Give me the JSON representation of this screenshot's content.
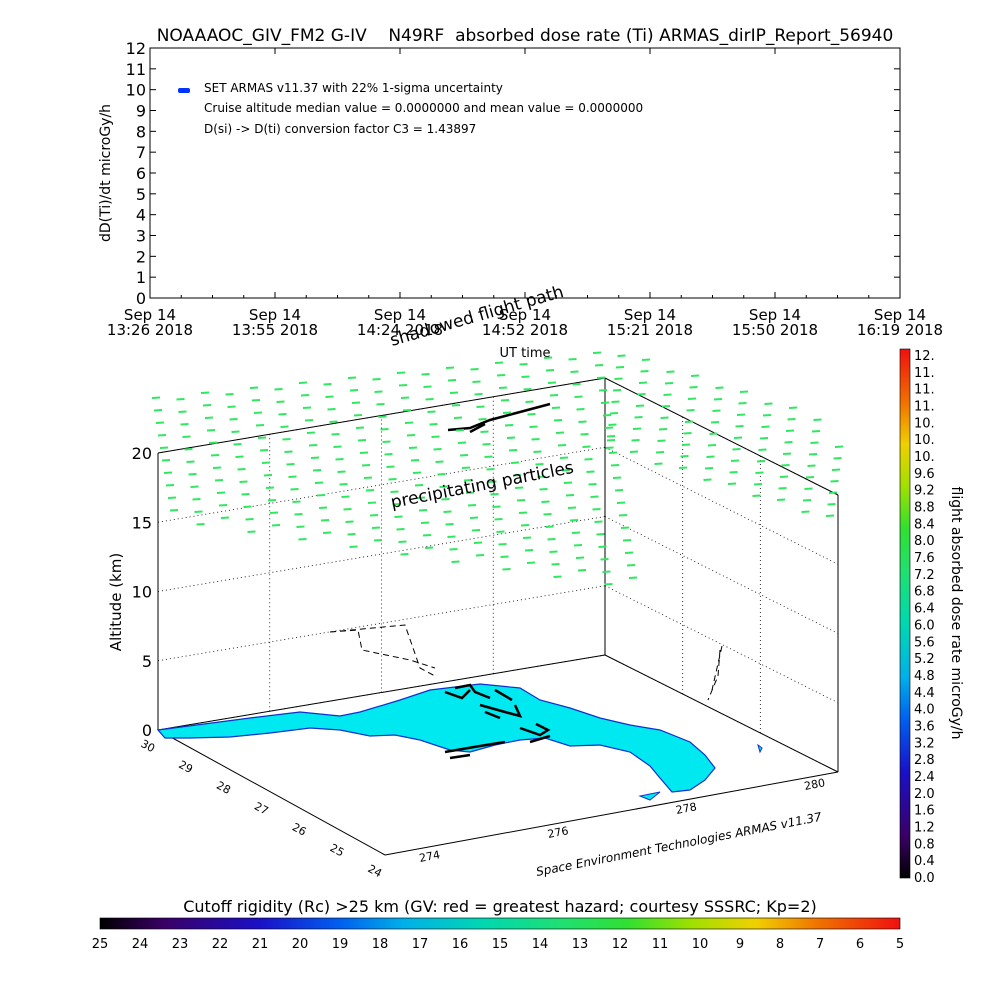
{
  "chart_data": [
    {
      "type": "line",
      "title": "NOAAAOC_GIV_FM2 G-IV    N49RF  absorbed dose rate (Ti) ARMAS_dirIP_Report_56940",
      "ylabel": "dD(Ti)/dt microGy/h",
      "xlabel": "UT time",
      "ylim": [
        0,
        12
      ],
      "y_ticks": [
        0,
        1,
        2,
        3,
        4,
        5,
        6,
        7,
        8,
        9,
        10,
        11,
        12
      ],
      "x_ticks": [
        {
          "l1": "Sep 14",
          "l2": "13:26 2018"
        },
        {
          "l1": "Sep 14",
          "l2": "13:55 2018"
        },
        {
          "l1": "Sep 14",
          "l2": "14:24 2018"
        },
        {
          "l1": "Sep 14",
          "l2": "14:52 2018"
        },
        {
          "l1": "Sep 14",
          "l2": "15:21 2018"
        },
        {
          "l1": "Sep 14",
          "l2": "15:50 2018"
        },
        {
          "l1": "Sep 14",
          "l2": "16:19 2018"
        }
      ],
      "series": [
        {
          "name": "SET ARMAS v11.37 with 22% 1-sigma uncertainty",
          "x_range": [
            "13:33",
            "16:19"
          ],
          "values": [
            0,
            0
          ],
          "color": "#000000"
        }
      ],
      "annotations": [
        "SET ARMAS v11.37 with 22% 1-sigma uncertainty",
        "Cruise altitude median value = 0.0000000 and mean value = 0.0000000",
        "D(si) -> D(ti) conversion factor C3 = 1.43897"
      ],
      "legend_marker_color": "#0000ff",
      "grid": false
    },
    {
      "type": "scatter",
      "zlabel": "Altitude (km)",
      "z_ticks": [
        0,
        5,
        10,
        15,
        20
      ],
      "lat_ticks": [
        30,
        29,
        28,
        27,
        26,
        25,
        24
      ],
      "lon_ticks": [
        274,
        276,
        278,
        280
      ],
      "labels": [
        "shadowed flight path",
        "precipitating particles",
        "Space Environment Technologies ARMAS v11.37"
      ],
      "flight_dose_rate": 0,
      "precipitating_particle_color": "#2fe860",
      "land_color": "#00e8f0",
      "grid": true
    }
  ],
  "colorbar_right": {
    "label": "flight absorbed dose rate microGy/h",
    "ticks": [
      "12.",
      "11.",
      "11.",
      "11.",
      "10.",
      "10.",
      "10.",
      "9.6",
      "9.2",
      "8.8",
      "8.4",
      "8.0",
      "7.6",
      "7.2",
      "6.8",
      "6.4",
      "6.0",
      "5.6",
      "5.2",
      "4.8",
      "4.4",
      "4.0",
      "3.6",
      "3.2",
      "2.8",
      "2.4",
      "2.0",
      "1.6",
      "1.2",
      "0.8",
      "0.4",
      "0.0"
    ]
  },
  "colorbar_bottom": {
    "title": "Cutoff rigidity (Rc) >25 km (GV: red = greatest hazard; courtesy SSSRC; Kp=2)",
    "ticks": [
      "25",
      "24",
      "23",
      "22",
      "21",
      "20",
      "19",
      "18",
      "17",
      "16",
      "15",
      "14",
      "13",
      "12",
      "11",
      "10",
      "9",
      "8",
      "7",
      "6",
      "5"
    ]
  }
}
